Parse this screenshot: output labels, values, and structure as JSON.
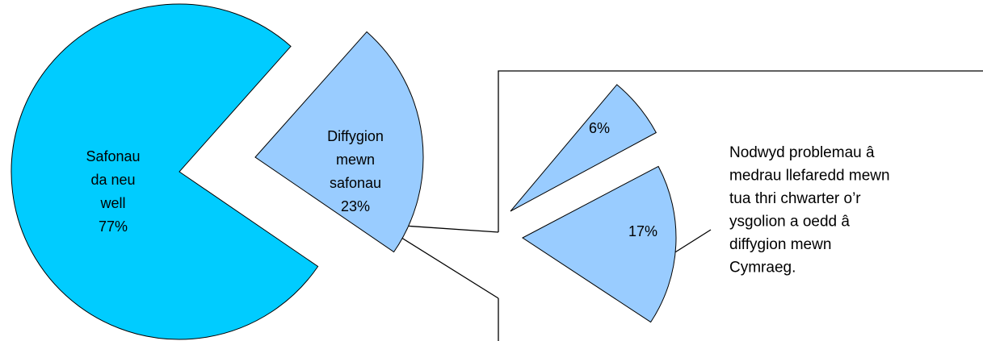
{
  "chart_data": {
    "type": "pie-of-pie",
    "main": {
      "categories": [
        [
          "Safonau",
          "da neu",
          "well"
        ],
        [
          "Diffygion",
          "mewn",
          "safonau"
        ]
      ],
      "values": [
        77,
        23
      ],
      "value_labels": [
        "77%",
        "23%"
      ],
      "colors": [
        "#00ccff",
        "#99ccff"
      ]
    },
    "secondary": {
      "values": [
        6,
        17
      ],
      "value_labels": [
        "6%",
        "17%"
      ],
      "color": "#99ccff"
    },
    "annotation": [
      "Nodwyd problemau â",
      "medrau llefaredd mewn",
      "tua thri chwarter o’r",
      "ysgolion a oedd â",
      "diffygion mewn",
      "Cymraeg."
    ]
  }
}
